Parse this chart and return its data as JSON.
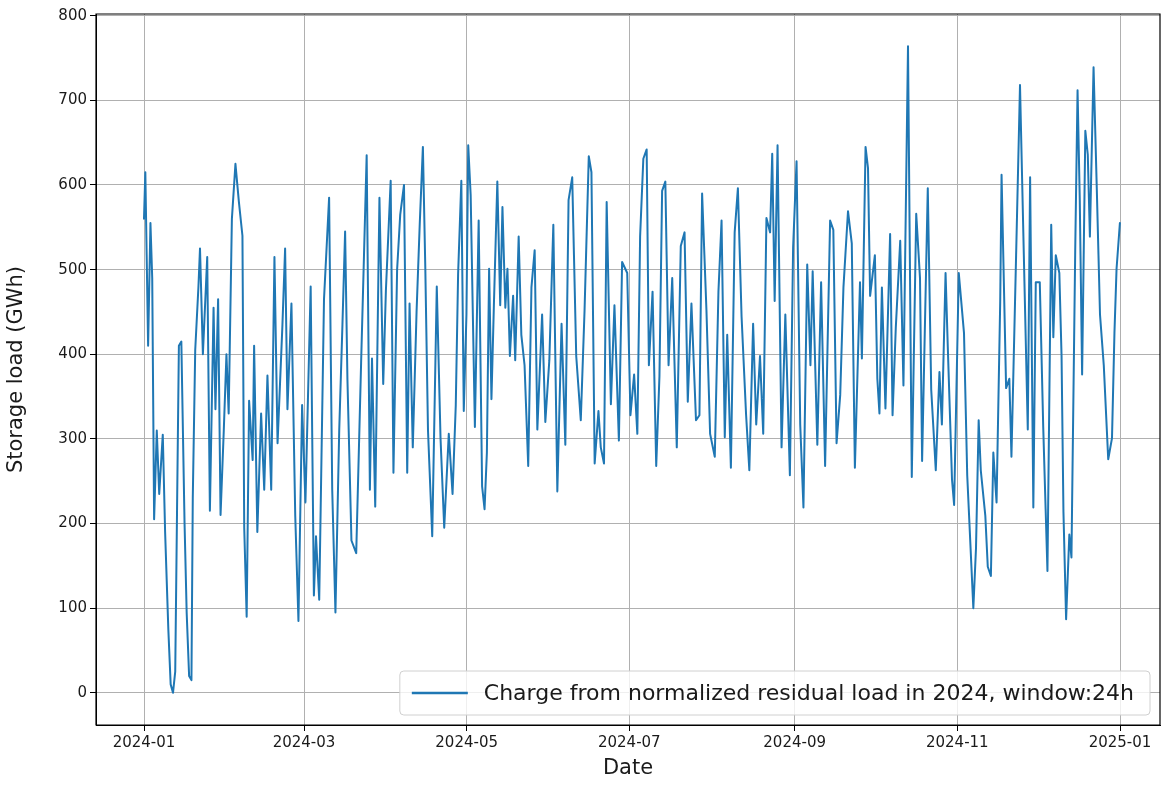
{
  "chart_data": {
    "type": "line",
    "xlabel": "Date",
    "ylabel": "Storage load (GWh)",
    "legend": "bottom right",
    "grid": true,
    "xlim": [
      "2023-12-14",
      "2025-01-16"
    ],
    "xticks": [
      "2024-01",
      "2024-03",
      "2024-05",
      "2024-07",
      "2024-09",
      "2024-11",
      "2025-01"
    ],
    "ylim": [
      -38,
      802
    ],
    "yticks": [
      0,
      100,
      200,
      300,
      400,
      500,
      600,
      700,
      800
    ],
    "series": [
      {
        "name": "Charge from normalized residual load in 2024, window:24h",
        "color": "#1f77b4",
        "x": [
          "2024-01-01T00:00",
          "2024-01-01T12:00",
          "2024-01-02T13:00",
          "2024-01-03T10:00",
          "2024-01-04T02:00",
          "2024-01-04T19:00",
          "2024-01-05T19:00",
          "2024-01-06T17:00",
          "2024-01-08T01:00",
          "2024-01-08T22:00",
          "2024-01-10T03:00",
          "2024-01-11T00:00",
          "2024-01-11T21:00",
          "2024-01-12T17:00",
          "2024-01-14T02:00",
          "2024-01-15T00:00",
          "2024-01-16T05:00",
          "2024-01-17T00:00",
          "2024-01-17T22:00",
          "2024-01-18T19:00",
          "2024-01-19T07:00",
          "2024-01-20T05:00",
          "2024-01-21T10:00",
          "2024-01-22T00:00",
          "2024-01-23T02:00",
          "2024-01-24T17:00",
          "2024-01-25T17:00",
          "2024-01-27T02:00",
          "2024-01-27T19:00",
          "2024-01-28T19:00",
          "2024-01-29T17:00",
          "2024-01-30T22:00",
          "2024-01-31T22:00",
          "2024-02-01T18:00",
          "2024-02-02T23:00",
          "2024-02-04T07:00",
          "2024-02-05T14:00",
          "2024-02-06T22:00",
          "2024-02-07T14:00",
          "2024-02-08T12:00",
          "2024-02-09T10:00",
          "2024-02-10T18:00",
          "2024-02-11T07:00",
          "2024-02-12T12:00",
          "2024-02-13T22:00",
          "2024-02-15T02:00",
          "2024-02-16T07:00",
          "2024-02-17T17:00",
          "2024-02-18T22:00",
          "2024-02-20T02:00",
          "2024-02-21T22:00",
          "2024-02-22T22:00",
          "2024-02-23T19:00",
          "2024-02-25T07:00",
          "2024-02-26T17:00",
          "2024-02-27T22:00",
          "2024-02-29T07:00",
          "2024-03-01T13:00",
          "2024-03-03T12:00",
          "2024-03-04T17:00",
          "2024-03-05T12:00",
          "2024-03-06T17:00",
          "2024-03-08T12:00",
          "2024-03-10T10:00",
          "2024-03-11T14:00",
          "2024-03-12T19:00",
          "2024-03-14T05:00",
          "2024-03-15T10:00",
          "2024-03-16T10:00",
          "2024-03-17T07:00",
          "2024-03-18T19:00",
          "2024-03-20T14:00",
          "2024-03-22T10:00",
          "2024-03-24T12:00",
          "2024-03-25T17:00",
          "2024-03-26T12:00",
          "2024-03-27T17:00",
          "2024-03-29T07:00",
          "2024-03-30T17:00",
          "2024-03-31T17:00",
          "2024-04-02T12:00",
          "2024-04-03T13:00",
          "2024-04-04T22:00",
          "2024-04-06T02:00",
          "2024-04-07T12:00",
          "2024-04-08T17:00",
          "2024-04-09T14:00",
          "2024-04-10T19:00",
          "2024-04-12T05:00",
          "2024-04-13T10:00",
          "2024-04-14T14:00",
          "2024-04-15T12:00",
          "2024-04-16T12:00",
          "2024-04-18T02:00",
          "2024-04-19T19:00",
          "2024-04-21T05:00",
          "2024-04-22T14:00",
          "2024-04-24T07:00",
          "2024-04-25T17:00",
          "2024-04-26T22:00",
          "2024-04-27T19:00",
          "2024-04-29T00:00",
          "2024-04-29T22:00",
          "2024-04-30T22:00",
          "2024-05-01T14:00",
          "2024-05-02T12:00",
          "2024-05-04T02:00",
          "2024-05-05T12:00",
          "2024-05-06T19:00",
          "2024-05-07T17:00",
          "2024-05-08T14:00",
          "2024-05-09T10:00",
          "2024-05-10T07:00",
          "2024-05-11T05:00",
          "2024-05-12T12:00",
          "2024-05-13T14:00",
          "2024-05-14T10:00",
          "2024-05-15T12:00",
          "2024-05-16T07:00",
          "2024-05-17T05:00",
          "2024-05-18T10:00",
          "2024-05-19T05:00",
          "2024-05-20T12:00",
          "2024-05-21T12:00",
          "2024-05-22T17:00",
          "2024-05-24T02:00",
          "2024-05-25T07:00",
          "2024-05-26T12:00",
          "2024-05-27T12:00",
          "2024-05-29T07:00",
          "2024-05-30T12:00",
          "2024-06-01T00:00",
          "2024-06-02T12:00",
          "2024-06-04T00:00",
          "2024-06-05T14:00",
          "2024-06-07T00:00",
          "2024-06-08T05:00",
          "2024-06-09T14:00",
          "2024-06-11T02:00",
          "2024-06-12T19:00",
          "2024-06-14T05:00",
          "2024-06-15T19:00",
          "2024-06-16T19:00",
          "2024-06-18T00:00",
          "2024-06-19T10:00",
          "2024-06-20T07:00",
          "2024-06-21T12:00",
          "2024-06-22T12:00",
          "2024-06-24T02:00",
          "2024-06-25T10:00",
          "2024-06-27T02:00",
          "2024-06-28T07:00",
          "2024-06-30T05:00",
          "2024-07-01T10:00",
          "2024-07-02T19:00",
          "2024-07-04T00:00",
          "2024-07-05T01:00",
          "2024-07-06T06:00",
          "2024-07-07T12:00",
          "2024-07-08T08:00",
          "2024-07-09T17:00",
          "2024-07-11T02:00",
          "2024-07-12T07:00",
          "2024-07-13T07:00",
          "2024-07-14T12:00",
          "2024-07-15T17:00",
          "2024-07-17T02:00",
          "2024-07-18T19:00",
          "2024-07-20T07:00",
          "2024-07-21T17:00",
          "2024-07-22T22:00",
          "2024-07-24T07:00",
          "2024-07-26T00:00",
          "2024-07-27T07:00",
          "2024-07-28T07:00",
          "2024-07-29T22:00",
          "2024-07-31T07:00",
          "2024-08-02T01:00",
          "2024-08-03T10:00",
          "2024-08-04T14:00",
          "2024-08-05T19:00",
          "2024-08-06T17:00",
          "2024-08-08T02:00",
          "2024-08-09T12:00",
          "2024-08-10T17:00",
          "2024-08-12T02:00",
          "2024-08-13T19:00",
          "2024-08-15T00:00",
          "2024-08-16T10:00",
          "2024-08-17T14:00",
          "2024-08-19T00:00",
          "2024-08-20T05:00",
          "2024-08-21T10:00",
          "2024-08-22T19:00",
          "2024-08-23T14:00",
          "2024-08-24T12:00",
          "2024-08-25T14:00",
          "2024-08-27T02:00",
          "2024-08-28T12:00",
          "2024-08-30T05:00",
          "2024-08-31T10:00",
          "2024-09-01T17:00",
          "2024-09-03T02:00",
          "2024-09-04T07:00",
          "2024-09-05T17:00",
          "2024-09-06T22:00",
          "2024-09-07T18:00",
          "2024-09-09T12:00",
          "2024-09-10T22:00",
          "2024-09-12T10:00",
          "2024-09-14T07:00",
          "2024-09-15T12:00",
          "2024-09-16T17:00",
          "2024-09-18T02:00",
          "2024-09-19T07:00",
          "2024-09-21T00:00",
          "2024-09-22T10:00",
          "2024-09-23T14:00",
          "2024-09-25T12:00",
          "2024-09-26T05:00",
          "2024-09-27T14:00",
          "2024-09-28T12:00",
          "2024-09-29T07:00",
          "2024-10-01T02:00",
          "2024-10-02T00:00",
          "2024-10-02T19:00",
          "2024-10-03T17:00",
          "2024-10-05T01:00",
          "2024-10-06T19:00",
          "2024-10-07T17:00",
          "2024-10-08T22:00",
          "2024-10-10T14:00",
          "2024-10-11T19:00",
          "2024-10-13T12:00",
          "2024-10-14T22:00",
          "2024-10-16T14:00",
          "2024-10-18T00:00",
          "2024-10-18T19:00",
          "2024-10-20T22:00",
          "2024-10-22T05:00",
          "2024-10-23T22:00",
          "2024-10-25T07:00",
          "2024-10-26T05:00",
          "2024-10-27T14:00",
          "2024-10-28T10:00",
          "2024-10-30T00:00",
          "2024-10-30T19:00",
          "2024-11-01T13:00",
          "2024-11-03T12:00",
          "2024-11-04T17:00",
          "2024-11-07T00:00",
          "2024-11-08T00:00",
          "2024-11-09T00:00",
          "2024-11-09T19:00",
          "2024-11-11T12:00",
          "2024-11-12T10:00",
          "2024-11-13T14:00",
          "2024-11-14T12:00",
          "2024-11-15T17:00",
          "2024-11-17T02:00",
          "2024-11-17T14:00",
          "2024-11-19T07:00",
          "2024-11-20T12:00",
          "2024-11-21T07:00",
          "2024-11-23T02:00",
          "2024-11-24T12:00",
          "2024-11-26T05:00",
          "2024-11-27T10:00",
          "2024-11-28T07:00",
          "2024-11-29T12:00",
          "2024-11-30T10:00",
          "2024-12-01T22:00",
          "2024-12-03T05:00",
          "2024-12-04T19:00",
          "2024-12-06T05:00",
          "2024-12-07T00:00",
          "2024-12-07T22:00",
          "2024-12-09T06:00",
          "2024-12-10T02:00",
          "2024-12-10T19:00",
          "2024-12-11T19:00",
          "2024-12-13T00:00",
          "2024-12-13T19:00",
          "2024-12-15T05:00",
          "2024-12-16T02:00",
          "2024-12-16T22:00",
          "2024-12-17T19:00",
          "2024-12-19T00:00",
          "2024-12-19T22:00",
          "2024-12-20T17:00",
          "2024-12-22T02:00",
          "2024-12-23T07:00",
          "2024-12-24T12:00",
          "2024-12-25T22:00",
          "2024-12-27T14:00",
          "2024-12-29T00:00",
          "2024-12-29T22:00",
          "2024-12-30T17:00",
          "2024-12-31T23:00"
        ],
        "values": [
          560,
          615,
          410,
          555,
          490,
          205,
          310,
          235,
          305,
          190,
          75,
          10,
          0,
          25,
          410,
          415,
          200,
          95,
          20,
          15,
          230,
          405,
          480,
          525,
          400,
          515,
          215,
          455,
          335,
          465,
          210,
          310,
          400,
          330,
          560,
          625,
          580,
          540,
          195,
          90,
          345,
          275,
          410,
          190,
          330,
          240,
          375,
          240,
          515,
          295,
          435,
          525,
          335,
          460,
          210,
          85,
          340,
          225,
          480,
          115,
          185,
          110,
          465,
          585,
          240,
          95,
          310,
          435,
          545,
          370,
          180,
          165,
          390,
          635,
          240,
          395,
          220,
          585,
          365,
          475,
          605,
          260,
          500,
          565,
          600,
          260,
          460,
          290,
          450,
          555,
          645,
          500,
          310,
          185,
          480,
          300,
          195,
          306,
          235,
          340,
          495,
          605,
          333,
          447,
          647,
          588,
          314,
          558,
          244,
          217,
          284,
          501,
          347,
          458,
          604,
          458,
          574,
          455,
          501,
          398,
          469,
          393,
          539,
          423,
          387,
          268,
          479,
          523,
          311,
          447,
          320,
          393,
          553,
          238,
          436,
          293,
          582,
          609,
          398,
          322,
          452,
          634,
          615,
          271,
          333,
          290,
          271,
          580,
          341,
          458,
          298,
          509,
          496,
          328,
          376,
          306,
          539,
          631,
          642,
          387,
          474,
          268,
          374,
          593,
          604,
          387,
          490,
          290,
          528,
          544,
          344,
          460,
          322,
          328,
          590,
          452,
          306,
          279,
          474,
          558,
          302,
          423,
          266,
          544,
          596,
          445,
          328,
          263,
          436,
          317,
          398,
          306,
          561,
          544,
          637,
          463,
          647,
          290,
          447,
          257,
          526,
          628,
          317,
          219,
          506,
          387,
          498,
          293,
          485,
          268,
          558,
          547,
          295,
          352,
          479,
          569,
          531,
          266,
          485,
          395,
          645,
          620,
          469,
          517,
          371,
          330,
          479,
          336,
          542,
          328,
          431,
          534,
          363,
          764,
          255,
          566,
          490,
          274,
          596,
          358,
          263,
          379,
          317,
          496,
          409,
          252,
          222,
          496,
          425,
          257,
          100,
          171,
          322,
          263,
          209,
          149,
          138,
          284,
          225,
          463,
          612,
          360,
          371,
          279,
          523,
          718,
          479,
          311,
          609,
          219,
          485,
          485,
          314,
          144,
          553,
          420,
          517,
          496,
          398,
          214,
          87,
          187,
          160,
          523,
          712,
          582,
          376,
          664,
          636,
          539,
          739,
          596,
          447,
          387,
          276,
          301,
          425,
          501,
          555
        ]
      }
    ]
  }
}
